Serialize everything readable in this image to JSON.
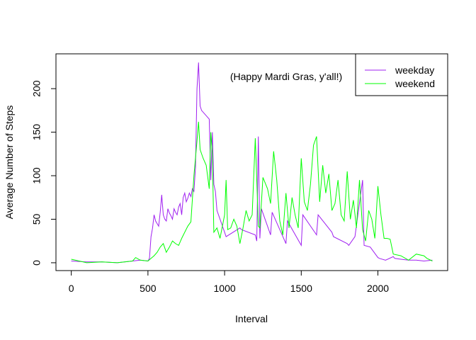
{
  "chart_data": {
    "type": "line",
    "xlabel": "Interval",
    "ylabel": "Average Number of Steps",
    "annotation": "(Happy Mardi Gras, y'all!)",
    "xlim": [
      -100,
      2455
    ],
    "ylim": [
      -9,
      240
    ],
    "x_ticks": [
      0,
      500,
      1000,
      1500,
      2000
    ],
    "y_ticks": [
      0,
      50,
      100,
      150,
      200
    ],
    "grid": false,
    "legend_position": "top-right",
    "series": [
      {
        "name": "weekday",
        "color": "#a020f0",
        "x": [
          0,
          100,
          200,
          300,
          400,
          450,
          500,
          510,
          520,
          530,
          540,
          550,
          560,
          570,
          580,
          590,
          600,
          610,
          620,
          630,
          640,
          650,
          660,
          670,
          680,
          690,
          700,
          710,
          720,
          730,
          740,
          750,
          760,
          770,
          780,
          790,
          800,
          810,
          820,
          830,
          840,
          850,
          900,
          910,
          920,
          930,
          940,
          950,
          1000,
          1010,
          1100,
          1110,
          1200,
          1210,
          1220,
          1230,
          1240,
          1300,
          1310,
          1400,
          1410,
          1500,
          1510,
          1600,
          1610,
          1700,
          1710,
          1800,
          1810,
          1850,
          1900,
          1910,
          1950,
          2000,
          2010,
          2050,
          2100,
          2110,
          2150,
          2200,
          2250,
          2300,
          2355
        ],
        "y": [
          2,
          1,
          1,
          0,
          2,
          3,
          2,
          5,
          30,
          40,
          55,
          48,
          45,
          42,
          58,
          78,
          55,
          50,
          48,
          62,
          57,
          54,
          50,
          62,
          58,
          55,
          64,
          68,
          55,
          75,
          80,
          70,
          74,
          80,
          76,
          85,
          82,
          110,
          200,
          230,
          180,
          175,
          165,
          95,
          150,
          90,
          82,
          60,
          35,
          30,
          40,
          38,
          32,
          25,
          145,
          28,
          62,
          32,
          58,
          22,
          48,
          20,
          55,
          32,
          55,
          35,
          30,
          22,
          20,
          30,
          95,
          20,
          18,
          6,
          5,
          3,
          7,
          5,
          4,
          3,
          3,
          2,
          3
        ]
      },
      {
        "name": "weekend",
        "color": "#00ff00",
        "x": [
          0,
          100,
          200,
          300,
          400,
          420,
          450,
          500,
          520,
          540,
          560,
          580,
          600,
          620,
          640,
          660,
          680,
          700,
          720,
          740,
          760,
          780,
          800,
          820,
          830,
          840,
          860,
          880,
          900,
          910,
          920,
          930,
          950,
          970,
          1000,
          1010,
          1020,
          1040,
          1060,
          1080,
          1100,
          1120,
          1140,
          1160,
          1180,
          1200,
          1210,
          1220,
          1230,
          1250,
          1280,
          1300,
          1320,
          1340,
          1360,
          1380,
          1400,
          1420,
          1440,
          1460,
          1480,
          1500,
          1520,
          1540,
          1560,
          1580,
          1600,
          1620,
          1640,
          1660,
          1680,
          1700,
          1720,
          1740,
          1760,
          1780,
          1800,
          1820,
          1840,
          1860,
          1880,
          1900,
          1920,
          1940,
          1960,
          1980,
          2000,
          2020,
          2040,
          2060,
          2080,
          2100,
          2150,
          2200,
          2250,
          2300,
          2320,
          2355
        ],
        "y": [
          4,
          0,
          1,
          0,
          2,
          6,
          3,
          2,
          5,
          8,
          12,
          18,
          22,
          12,
          18,
          25,
          22,
          20,
          28,
          35,
          42,
          47,
          100,
          140,
          162,
          130,
          120,
          112,
          85,
          150,
          125,
          35,
          40,
          28,
          55,
          95,
          38,
          40,
          50,
          42,
          22,
          40,
          60,
          48,
          55,
          143,
          95,
          42,
          40,
          98,
          85,
          68,
          128,
          95,
          48,
          32,
          80,
          40,
          75,
          55,
          40,
          120,
          70,
          60,
          90,
          135,
          145,
          70,
          112,
          80,
          102,
          60,
          68,
          95,
          55,
          48,
          105,
          50,
          72,
          40,
          95,
          38,
          25,
          60,
          50,
          28,
          88,
          55,
          28,
          28,
          27,
          10,
          8,
          3,
          10,
          8,
          5,
          2
        ]
      }
    ]
  }
}
